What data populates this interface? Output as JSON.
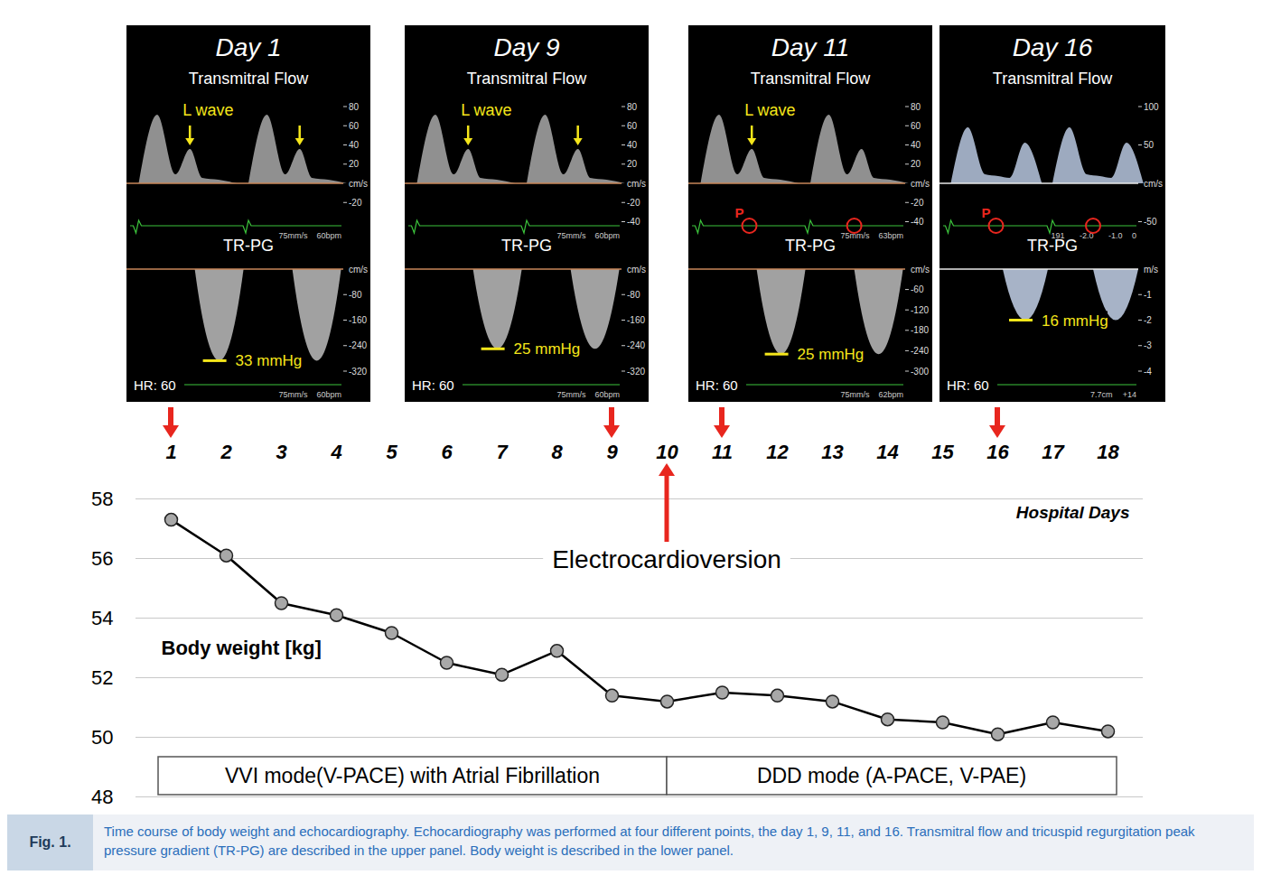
{
  "chart_data": {
    "type": "line",
    "x_label": "Hospital Days",
    "y_label": "Body weight [kg]",
    "categories": [
      "1",
      "2",
      "3",
      "4",
      "5",
      "6",
      "7",
      "8",
      "9",
      "10",
      "11",
      "12",
      "13",
      "14",
      "15",
      "16",
      "17",
      "18"
    ],
    "values": [
      57.3,
      56.1,
      54.5,
      54.1,
      53.5,
      52.5,
      52.1,
      52.9,
      51.4,
      51.2,
      51.5,
      51.4,
      51.2,
      50.6,
      50.5,
      50.1,
      50.5,
      50.2
    ],
    "color": "#000000",
    "marker": "circle",
    "ylim": [
      48,
      58
    ],
    "yticks": [
      48,
      50,
      52,
      54,
      56,
      58
    ],
    "grid": true,
    "annotations": [
      {
        "text": "Electrocardioversion",
        "x": "10"
      }
    ],
    "modes": [
      {
        "label": "VVI mode(V-PACE) with Atrial Fibrillation",
        "from": "1",
        "to": "10"
      },
      {
        "label": "DDD mode (A-PACE, V-PAE)",
        "from": "10",
        "to": "18"
      }
    ]
  },
  "echo_panels": [
    {
      "day": "1",
      "title": "Day 1",
      "flow_title": "Transmitral Flow",
      "l_wave": "L wave",
      "l_wave_arrows": 2,
      "flow_scale": {
        "unit": "cm/s",
        "ticks": [
          80,
          60,
          40,
          20,
          -20
        ]
      },
      "flow_notes": [
        "75mm/s",
        "60bpm"
      ],
      "tr_title": "TR-PG",
      "tr_scale": {
        "unit": "cm/s",
        "ticks": [
          -80,
          -160,
          -240,
          -320
        ]
      },
      "tr_notes": [
        "75mm/s",
        "60bpm"
      ],
      "tr_pg": 33,
      "tr_pg_label": "33 mmHg",
      "hr_label": "HR: 60"
    },
    {
      "day": "9",
      "title": "Day 9",
      "flow_title": "Transmitral Flow",
      "l_wave": "L wave",
      "l_wave_arrows": 2,
      "flow_scale": {
        "unit": "cm/s",
        "ticks": [
          80,
          60,
          40,
          20,
          -20,
          -40
        ]
      },
      "flow_notes": [
        "75mm/s",
        "60bpm"
      ],
      "tr_title": "TR-PG",
      "tr_scale": {
        "unit": "cm/s",
        "ticks": [
          -80,
          -160,
          -240,
          -320
        ]
      },
      "tr_notes": [
        "75mm/s",
        "60bpm"
      ],
      "tr_pg": 25,
      "tr_pg_label": "25 mmHg",
      "hr_label": "HR: 60"
    },
    {
      "day": "11",
      "title": "Day 11",
      "flow_title": "Transmitral Flow",
      "l_wave": "L wave",
      "l_wave_arrows": 1,
      "p_wave": "P",
      "flow_scale": {
        "unit": "cm/s",
        "ticks": [
          80,
          60,
          40,
          20,
          -20,
          -40
        ]
      },
      "flow_notes": [
        "75mm/s",
        "63bpm"
      ],
      "tr_title": "TR-PG",
      "tr_scale": {
        "unit": "cm/s",
        "ticks": [
          -60,
          -120,
          -180,
          -240,
          -300
        ]
      },
      "tr_notes": [
        "75mm/s",
        "62bpm"
      ],
      "tr_pg": 25,
      "tr_pg_label": "25 mmHg",
      "hr_label": "HR: 60"
    },
    {
      "day": "16",
      "title": "Day 16",
      "flow_title": "Transmitral Flow",
      "p_wave": "P",
      "flow_scale": {
        "unit": "cm/s",
        "ticks": [
          100,
          50,
          -50
        ]
      },
      "flow_notes": [
        "191",
        "-2.0",
        "-1.0",
        "0"
      ],
      "tr_title": "TR-PG",
      "tr_scale": {
        "unit": "m/s",
        "ticks": [
          -1,
          -2,
          -3,
          -4
        ]
      },
      "tr_notes": [
        "7.7cm",
        "+14"
      ],
      "tr_pg": 16,
      "tr_pg_label": "16 mmHg",
      "hr_label": "HR: 60"
    }
  ],
  "figure_label": "Fig. 1.",
  "caption": "Time course of body weight and echocardiography. Echocardiography was performed at four different points, the day 1, 9, 11, and 16. Transmitral flow and tricuspid regurgitation peak pressure gradient (TR-PG) are described in the upper panel. Body weight is described in the lower panel."
}
